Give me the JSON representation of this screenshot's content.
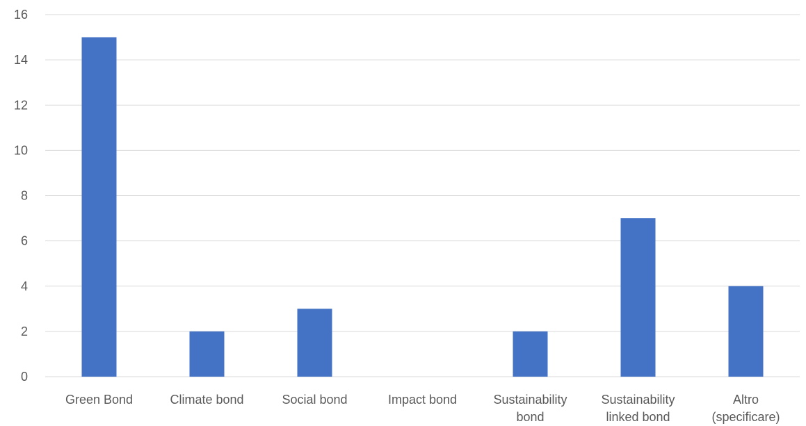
{
  "chart_data": {
    "type": "bar",
    "title": "",
    "xlabel": "",
    "ylabel": "",
    "categories": [
      [
        "Green Bond"
      ],
      [
        "Climate bond"
      ],
      [
        "Social bond"
      ],
      [
        "Impact bond"
      ],
      [
        "Sustainability",
        "bond"
      ],
      [
        "Sustainability",
        "linked bond"
      ],
      [
        "Altro",
        "(specificare)"
      ]
    ],
    "values": [
      15,
      2,
      3,
      0,
      2,
      7,
      4
    ],
    "ylim": [
      0,
      16
    ],
    "yticks": [
      0,
      2,
      4,
      6,
      8,
      10,
      12,
      14,
      16
    ],
    "grid": true,
    "legend": "none",
    "bar_color": "#4472c4"
  }
}
